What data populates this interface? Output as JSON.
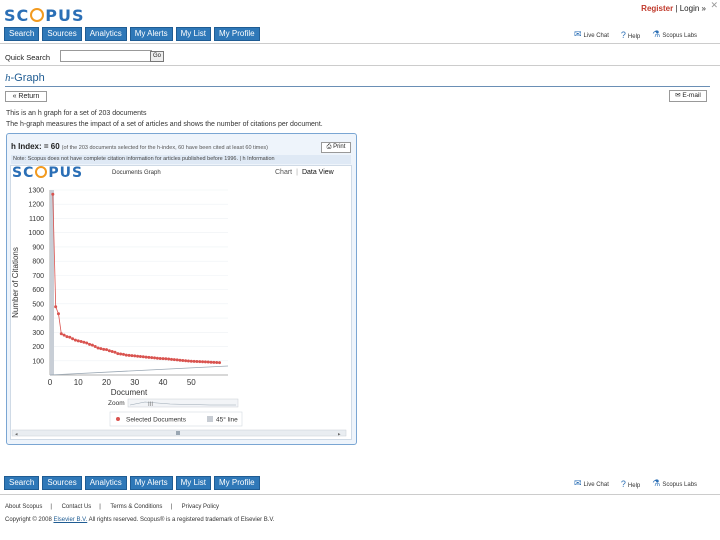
{
  "header": {
    "logo_text_pre": "SC",
    "logo_text_post": "PUS",
    "register": "Register",
    "separator": "|",
    "login": "Login"
  },
  "nav": {
    "tabs": [
      "Search",
      "Sources",
      "Analytics",
      "My Alerts",
      "My List",
      "My Profile"
    ]
  },
  "utility_links": [
    "Live Chat",
    "Help",
    "Scopus Labs"
  ],
  "quick_search": {
    "label": "Quick Search",
    "value": "",
    "go": "Go"
  },
  "page": {
    "title_italic": "h",
    "title_rest": "-Graph",
    "back_label": "« Return",
    "email_label": "E-mail",
    "desc_line1": "This is an h graph for a set of 203 documents",
    "desc_line2": "The h-graph measures the impact of a set of articles and shows the number of citations per document."
  },
  "panel": {
    "h_label": "h Index: = 60",
    "h_note": "(of the 203 documents selected for the h-index, 60 have been cited at least 60 times)",
    "print_label": "Print",
    "notes": "Note: Scopus does not have complete citation information for articles published before 1996. | h Information",
    "inner_logo_pre": "SC",
    "inner_logo_post": "PUS",
    "graph_name": "Documents Graph",
    "view_chart": "Chart",
    "view_sep": "|",
    "view_data": "Data View"
  },
  "chart_data": {
    "type": "scatter",
    "title": "",
    "xlabel": "Document",
    "ylabel": "Number of Citations",
    "xlim": [
      0,
      63
    ],
    "ylim": [
      0,
      1300
    ],
    "x_ticks": [
      0,
      10,
      20,
      30,
      40,
      50
    ],
    "y_ticks": [
      100,
      200,
      300,
      400,
      500,
      600,
      700,
      800,
      900,
      1000,
      1100,
      1200,
      1300
    ],
    "y_tick_labels": [
      "100",
      "200",
      "300",
      "400",
      "500",
      "600",
      "700",
      "800",
      "900",
      "1000",
      "1100",
      "1200",
      "1300"
    ],
    "series": [
      {
        "name": "Selected Documents",
        "color": "#d9534f",
        "x": [
          1,
          2,
          3,
          4,
          5,
          6,
          7,
          8,
          9,
          10,
          11,
          12,
          13,
          14,
          15,
          16,
          17,
          18,
          19,
          20,
          21,
          22,
          23,
          24,
          25,
          26,
          27,
          28,
          29,
          30,
          31,
          32,
          33,
          34,
          35,
          36,
          37,
          38,
          39,
          40,
          41,
          42,
          43,
          44,
          45,
          46,
          47,
          48,
          49,
          50,
          51,
          52,
          53,
          54,
          55,
          56,
          57,
          58,
          59,
          60
        ],
        "y": [
          1270,
          480,
          430,
          290,
          280,
          270,
          265,
          255,
          245,
          240,
          235,
          230,
          225,
          215,
          210,
          200,
          190,
          185,
          180,
          178,
          170,
          165,
          160,
          150,
          148,
          145,
          140,
          138,
          136,
          134,
          132,
          130,
          128,
          126,
          124,
          122,
          120,
          118,
          116,
          115,
          114,
          112,
          110,
          108,
          106,
          104,
          102,
          100,
          98,
          97,
          96,
          95,
          94,
          93,
          92,
          91,
          90,
          89,
          88,
          87
        ]
      },
      {
        "name": "45° line",
        "color": "#9aa7b3",
        "x": [
          0,
          63
        ],
        "y": [
          0,
          63
        ]
      }
    ],
    "legend": [
      "Selected Documents",
      "45° line"
    ],
    "zoom_label": "Zoom",
    "scroll_marker": "III"
  },
  "footer": {
    "links": [
      "About Scopus",
      "Contact Us",
      "Terms & Conditions",
      "Privacy Policy"
    ],
    "copyright_pre": "Copyright © 2008",
    "copyright_link": "Elsevier B.V.",
    "copyright_post": "All rights reserved. Scopus® is a registered trademark of Elsevier B.V."
  }
}
